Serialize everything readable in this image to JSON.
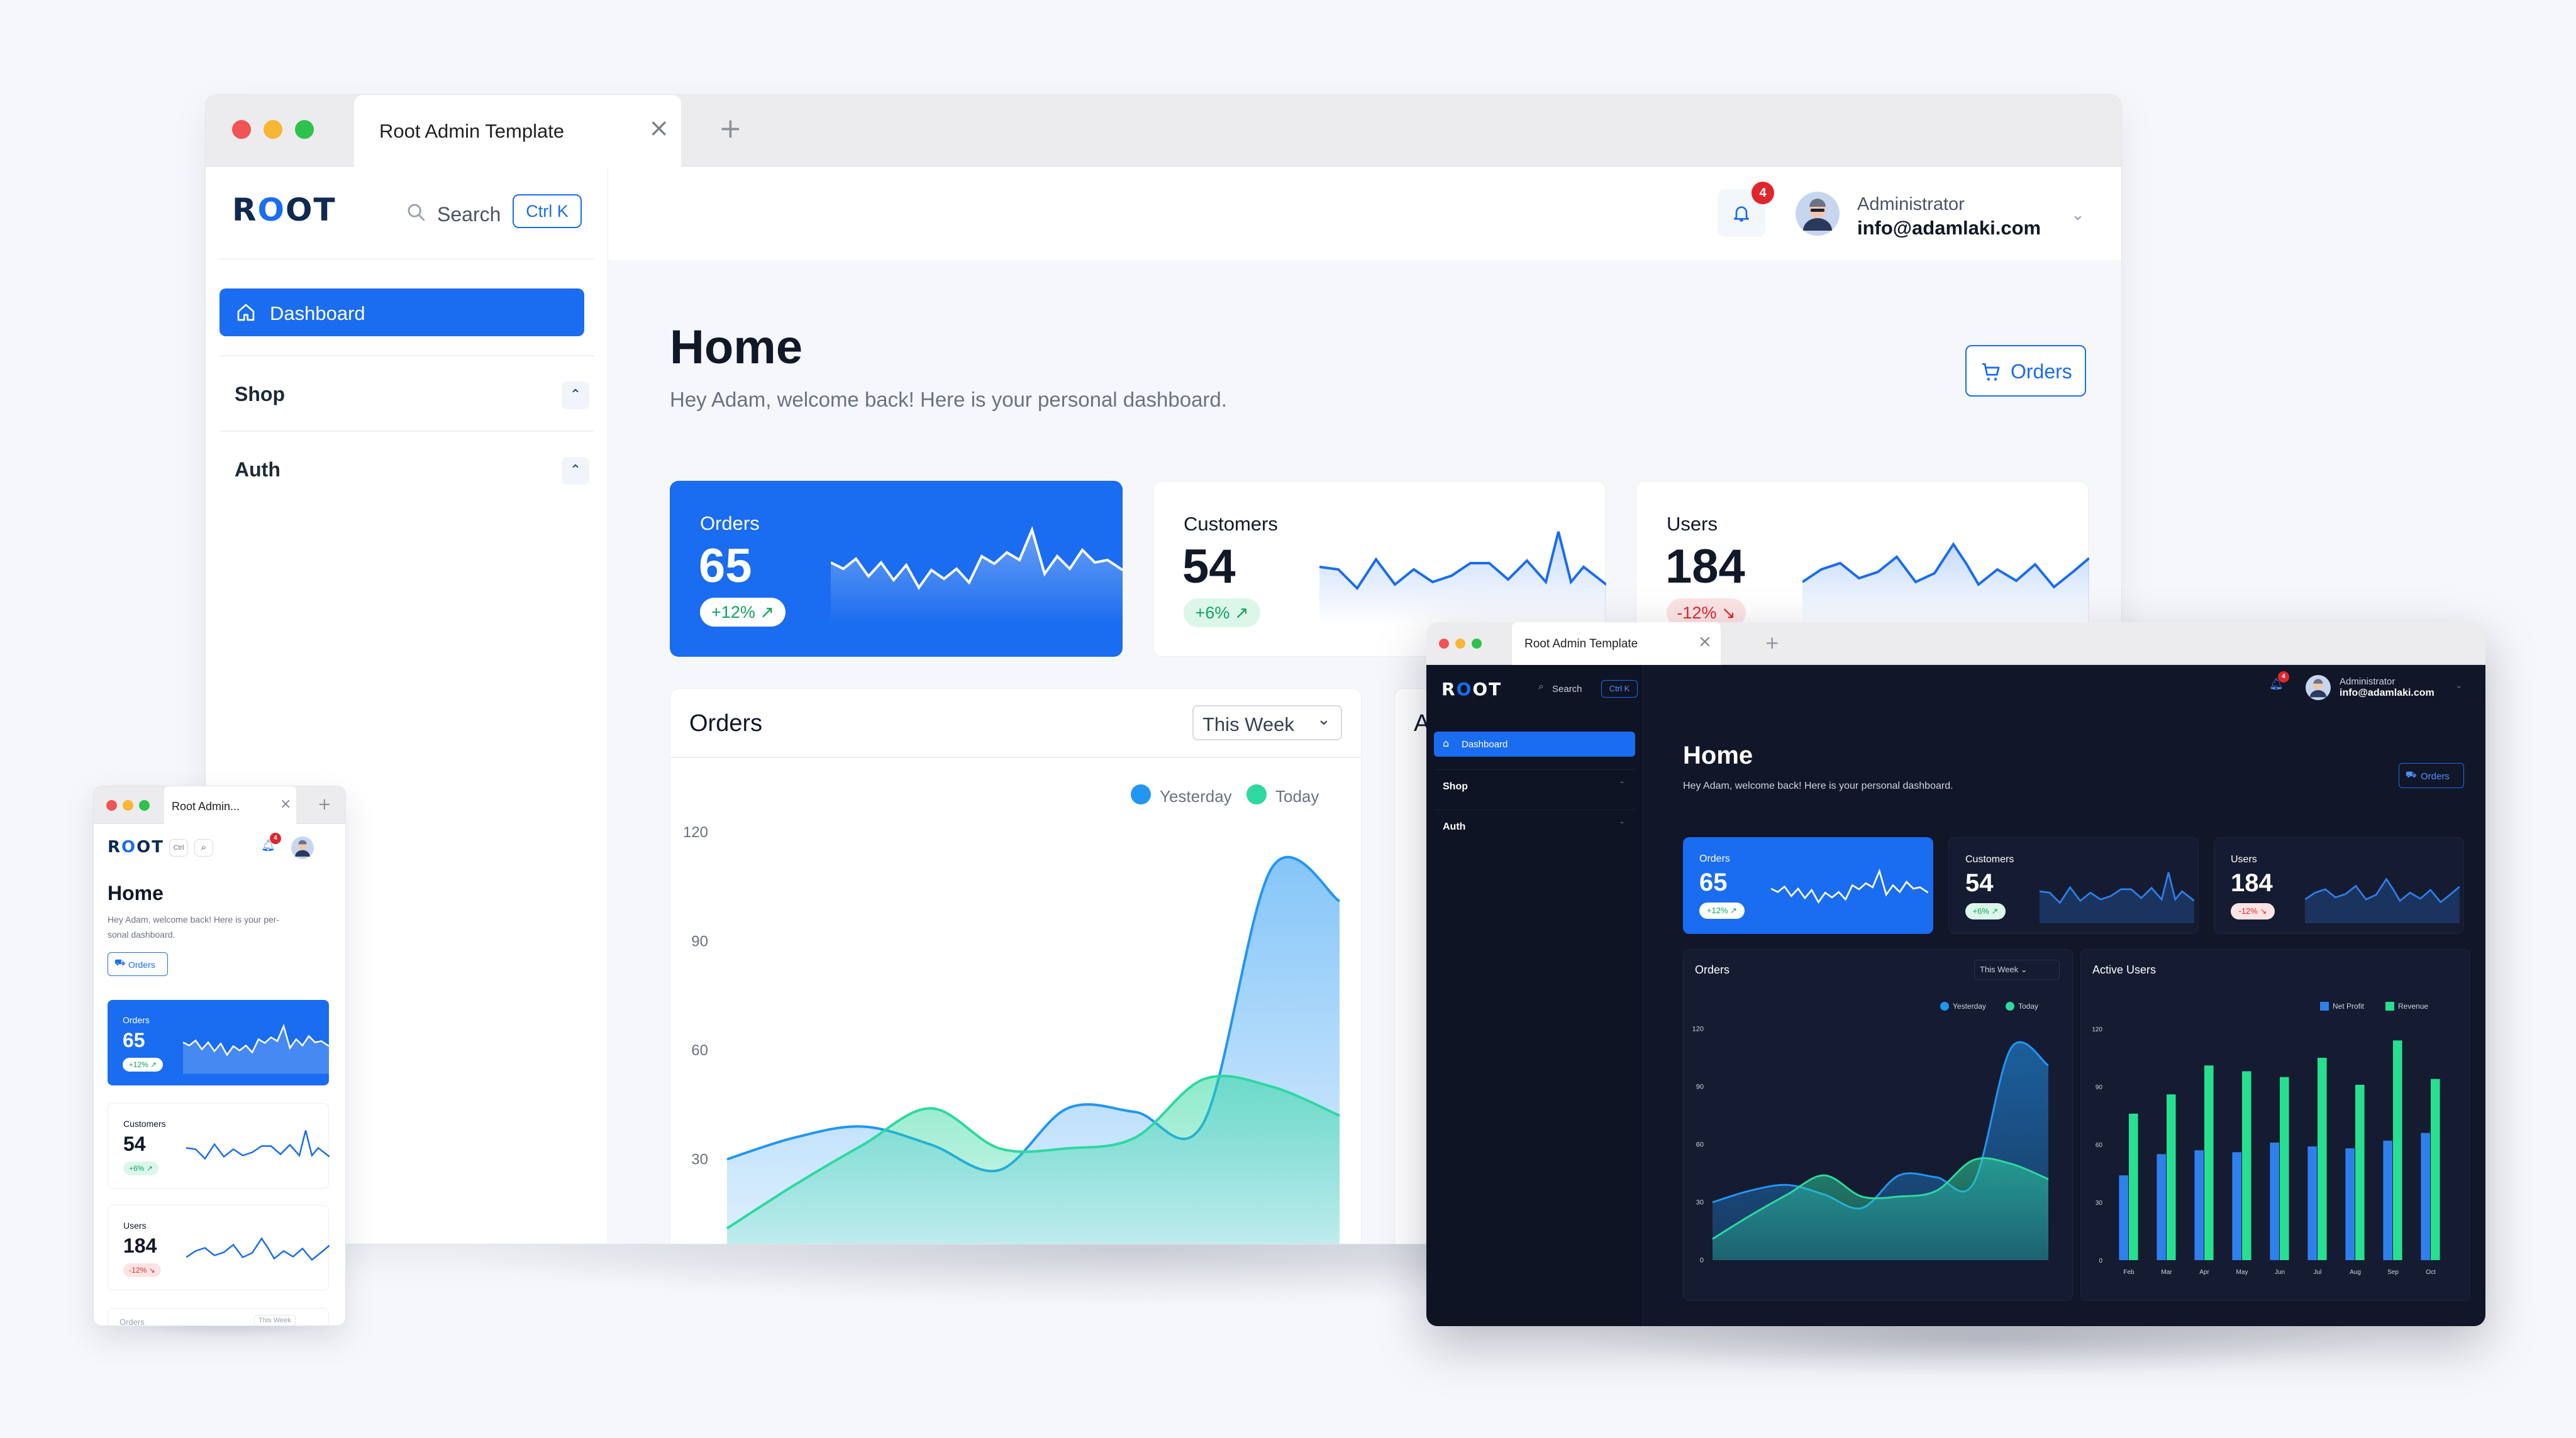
{
  "browser": {
    "tab_title": "Root Admin Template",
    "tab_title_short": "Root Admin...",
    "close_glyph": "×",
    "new_tab_glyph": "+"
  },
  "logo": {
    "part1": "R",
    "part2": "O",
    "part3": "OT"
  },
  "search": {
    "label": "Search",
    "shortcut": "Ctrl K",
    "shortcut_short": "Ctrl"
  },
  "sidebar": {
    "dashboard": "Dashboard",
    "shop": "Shop",
    "auth": "Auth"
  },
  "header": {
    "notification_count": "4",
    "user_role": "Administrator",
    "user_email": "info@adamlaki.com"
  },
  "page": {
    "title": "Home",
    "subtitle": "Hey Adam, welcome back! Here is your personal dashboard.",
    "subtitle_mobile_1": "Hey Adam, welcome back! Here is your per-",
    "subtitle_mobile_2": "sonal dashboard.",
    "orders_button": "Orders"
  },
  "stats": [
    {
      "label": "Orders",
      "value": "65",
      "change": "+12%",
      "trend": "up"
    },
    {
      "label": "Customers",
      "value": "54",
      "change": "+6%",
      "trend": "up"
    },
    {
      "label": "Users",
      "value": "184",
      "change": "-12%",
      "trend": "down"
    }
  ],
  "orders_chart": {
    "title": "Orders",
    "period": "This Week",
    "legend": [
      "Yesterday",
      "Today"
    ],
    "colors": {
      "yesterday": "#2196f3",
      "today": "#2ed8a0"
    }
  },
  "active_users_chart": {
    "title": "Active Users",
    "legend": [
      "Net Profit",
      "Revenue"
    ],
    "colors": {
      "net_profit": "#2f80ed",
      "revenue": "#27e08f"
    }
  },
  "chart_data": [
    {
      "type": "area",
      "title": "Orders",
      "x": [
        1,
        2,
        3,
        4,
        5,
        6,
        7,
        8,
        9,
        10
      ],
      "ylim": [
        0,
        120
      ],
      "yticks": [
        0,
        30,
        60,
        90,
        120
      ],
      "series": [
        {
          "name": "Yesterday",
          "values": [
            30,
            36,
            39,
            34,
            27,
            44,
            43,
            40,
            110,
            101
          ]
        },
        {
          "name": "Today",
          "values": [
            11,
            23,
            34,
            44,
            33,
            33,
            36,
            52,
            50,
            42
          ]
        }
      ]
    },
    {
      "type": "bar",
      "title": "Active Users",
      "categories": [
        "Feb",
        "Mar",
        "Apr",
        "May",
        "Jun",
        "Jul",
        "Aug",
        "Sep",
        "Oct"
      ],
      "ylim": [
        0,
        120
      ],
      "yticks": [
        0,
        30,
        60,
        90,
        120
      ],
      "series": [
        {
          "name": "Net Profit",
          "values": [
            44,
            55,
            57,
            56,
            61,
            59,
            58,
            62,
            66
          ]
        },
        {
          "name": "Revenue",
          "values": [
            76,
            86,
            101,
            98,
            95,
            105,
            91,
            114,
            94
          ]
        }
      ]
    }
  ]
}
